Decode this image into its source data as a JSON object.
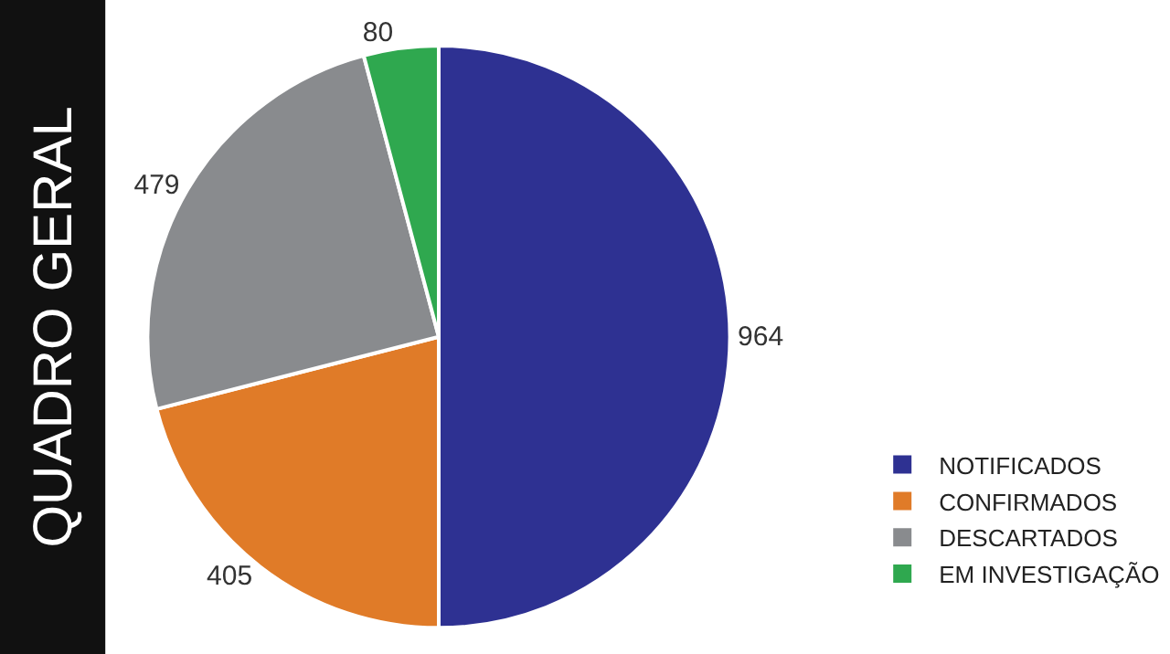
{
  "chart_data": {
    "type": "pie",
    "title": "QUADRO GERAL",
    "categories": [
      "NOTIFICADOS",
      "CONFIRMADOS",
      "DESCARTADOS",
      "EM INVESTIGAÇÃO"
    ],
    "values": [
      964,
      405,
      479,
      80
    ],
    "colors": [
      "#2e3192",
      "#e07b28",
      "#898b8e",
      "#2fa84f"
    ],
    "data_labels": true,
    "legend": "right"
  }
}
